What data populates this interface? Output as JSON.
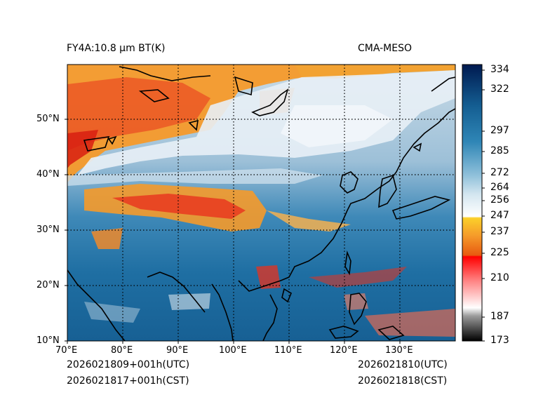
{
  "header": {
    "title_left": "FY4A:10.8 µm BT(K)",
    "title_right": "CMA-MESO"
  },
  "footer": {
    "init_utc": "2026021809+001h(UTC)",
    "init_cst": "2026021817+001h(CST)",
    "valid_utc": "2026021810(UTC)",
    "valid_cst": "2026021818(CST)"
  },
  "map": {
    "lon_labels": [
      "70°E",
      "80°E",
      "90°E",
      "100°E",
      "110°E",
      "120°E",
      "130°E"
    ],
    "lat_labels": [
      "50°N",
      "40°N",
      "30°N",
      "20°N",
      "10°N"
    ],
    "extent": {
      "lon_min": 70,
      "lon_max": 140,
      "lat_min": 10,
      "lat_max": 60
    }
  },
  "colorbar": {
    "ticks": [
      "334",
      "322",
      "297",
      "285",
      "272",
      "264",
      "256",
      "247",
      "237",
      "225",
      "210",
      "187",
      "173"
    ],
    "range": [
      173,
      336
    ]
  },
  "colors": {
    "ocean_blue": "#1f6fa3",
    "cloud_white": "#e8f0f6",
    "cold_red": "#e8321e",
    "cold_orange": "#f59a2a"
  }
}
